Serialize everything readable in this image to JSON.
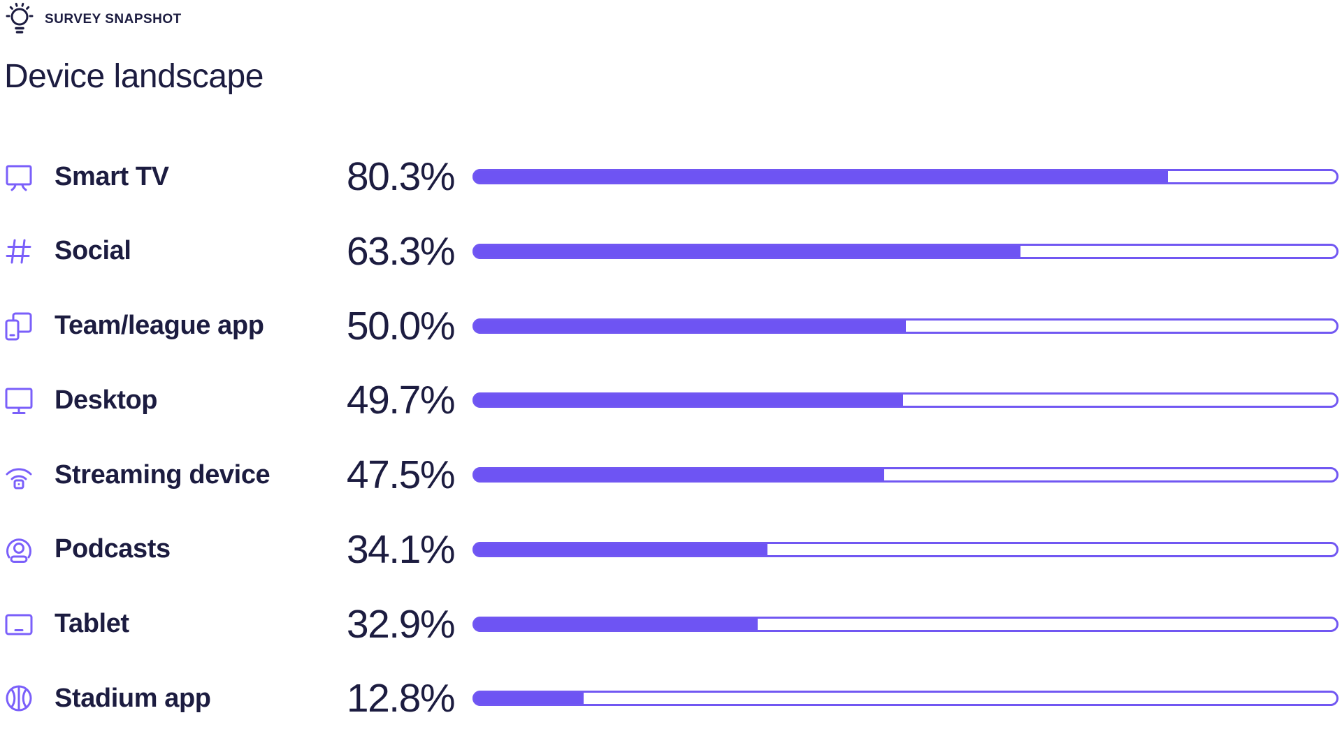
{
  "header": {
    "eyebrow": "SURVEY SNAPSHOT"
  },
  "title": "Device landscape",
  "colors": {
    "navy": "#1c1c40",
    "purple": "#6e54f3",
    "purple_track": "#7157f2",
    "icon_purple": "#7a5ffa",
    "background": "#ffffff"
  },
  "chart_data": {
    "type": "bar",
    "orientation": "horizontal",
    "eyebrow": "SURVEY SNAPSHOT",
    "title": "Device landscape",
    "categories": [
      "Smart TV",
      "Social",
      "Team/league app",
      "Desktop",
      "Streaming device",
      "Podcasts",
      "Tablet",
      "Stadium app"
    ],
    "values": [
      80.3,
      63.3,
      50.0,
      49.7,
      47.5,
      34.1,
      32.9,
      12.8
    ],
    "value_labels": [
      "80.3%",
      "63.3%",
      "50.0%",
      "49.7%",
      "47.5%",
      "34.1%",
      "32.9%",
      "12.8%"
    ],
    "icons": [
      "smart-tv-icon",
      "hashtag-icon",
      "devices-icon",
      "desktop-icon",
      "streaming-icon",
      "podcast-icon",
      "tablet-icon",
      "basketball-icon"
    ],
    "xlim": [
      0,
      100
    ],
    "grid": false,
    "legend": false
  }
}
